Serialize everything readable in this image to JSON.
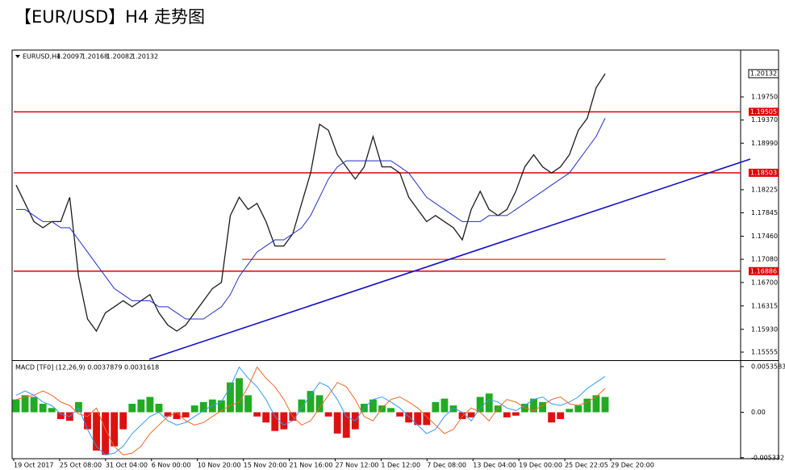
{
  "title": "【EUR/USD】H4 走势图",
  "chart_data": [
    {
      "type": "line",
      "symbol": "EURUSD,H4",
      "ohlc": [
        1.20097,
        1.20168,
        1.20082,
        1.20132
      ],
      "series": [
        {
          "color": "#1a1a1a",
          "values": [
            1.183,
            1.18,
            1.177,
            1.176,
            1.177,
            1.177,
            1.181,
            1.168,
            1.161,
            1.159,
            1.162,
            1.163,
            1.164,
            1.163,
            1.164,
            1.165,
            1.162,
            1.16,
            1.159,
            1.16,
            1.162,
            1.164,
            1.166,
            1.167,
            1.178,
            1.181,
            1.179,
            1.18,
            1.177,
            1.173,
            1.173,
            1.175,
            1.18,
            1.185,
            1.193,
            1.192,
            1.188,
            1.186,
            1.184,
            1.186,
            1.191,
            1.186,
            1.186,
            1.185,
            1.181,
            1.179,
            1.177,
            1.178,
            1.177,
            1.176,
            1.174,
            1.179,
            1.182,
            1.179,
            1.178,
            1.179,
            1.182,
            1.186,
            1.188,
            1.186,
            1.185,
            1.186,
            1.188,
            1.192,
            1.194,
            1.199,
            1.2013
          ]
        },
        {
          "color": "#2030c0",
          "values": [
            1.179,
            1.179,
            1.178,
            1.177,
            1.177,
            1.176,
            1.176,
            1.174,
            1.172,
            1.17,
            1.168,
            1.166,
            1.165,
            1.164,
            1.164,
            1.164,
            1.163,
            1.163,
            1.162,
            1.161,
            1.161,
            1.161,
            1.162,
            1.163,
            1.165,
            1.168,
            1.17,
            1.172,
            1.173,
            1.174,
            1.174,
            1.175,
            1.176,
            1.178,
            1.181,
            1.184,
            1.186,
            1.187,
            1.187,
            1.187,
            1.187,
            1.187,
            1.187,
            1.186,
            1.185,
            1.183,
            1.181,
            1.18,
            1.179,
            1.178,
            1.177,
            1.177,
            1.177,
            1.178,
            1.178,
            1.178,
            1.179,
            1.18,
            1.181,
            1.182,
            1.183,
            1.184,
            1.185,
            1.187,
            1.189,
            1.191,
            1.194
          ]
        }
      ],
      "ylim": [
        1.15436,
        1.2052
      ],
      "yticks": [
        {
          "value": 1.1975,
          "label": "1.19750"
        },
        {
          "value": 1.1937,
          "label": "1.19370"
        },
        {
          "value": 1.1899,
          "label": "1.18990"
        },
        1.18225,
        1.17845,
        {
          "value": 1.1746,
          "label": "1.17460"
        },
        {
          "value": 1.1708,
          "label": "1.17080"
        },
        {
          "value": 1.167,
          "label": "1.16700"
        },
        1.16315,
        {
          "value": 1.1593,
          "label": "1.15930"
        },
        1.15555
      ],
      "levels": [
        1.19505,
        1.18503,
        1.16886
      ],
      "level_color": "#e00000",
      "short_level": 1.1708,
      "trendline": [
        1.15436,
        1.18728
      ],
      "trend_color": "#1010c8",
      "x_labels": [
        "19 Oct 2017",
        "25 Oct 08:00",
        "31 Oct 04:00",
        "6 Nov 00:00",
        "10 Nov 20:00",
        "15 Nov 20:00",
        "21 Nov 16:00",
        "27 Nov 12:00",
        "1 Dec 12:00",
        "7 Dec 08:00",
        "13 Dec 04:00",
        "19 Dec 00:00",
        "25 Dec 22:05",
        "29 Dec 20:00"
      ]
    },
    {
      "type": "macd",
      "label": "MACD [TF0] (12,26,9) 0.0037879 0.0031618",
      "values": [
        0.0015,
        0.002,
        0.0018,
        0.001,
        0.0005,
        -0.0008,
        -0.001,
        0.0012,
        -0.002,
        -0.0045,
        -0.005,
        -0.004,
        -0.002,
        0.001,
        0.0015,
        0.0018,
        0.001,
        -0.0005,
        -0.0008,
        -0.0006,
        0.0008,
        0.0012,
        0.0015,
        0.0014,
        0.0035,
        0.004,
        0.002,
        -0.0005,
        -0.0012,
        -0.0022,
        -0.002,
        -0.001,
        0.0015,
        0.0025,
        0.002,
        -0.0005,
        -0.0025,
        -0.003,
        -0.002,
        0.001,
        0.0015,
        0.0008,
        0.0005,
        -0.0005,
        -0.0012,
        -0.0015,
        -0.0015,
        0.0012,
        0.0016,
        0.0008,
        -0.0008,
        -0.0006,
        0.0018,
        0.0022,
        0.0008,
        -0.0006,
        -0.0004,
        0.001,
        0.0016,
        0.0012,
        -0.0012,
        -0.0008,
        0.0004,
        0.0008,
        0.0016,
        0.002,
        0.0018
      ],
      "pos_color": "#22aa22",
      "neg_color": "#dd1111",
      "series": [
        {
          "color": "#3399ee",
          "values": [
            0.002,
            0.0025,
            0.002,
            0.0012,
            0.0008,
            -0.0002,
            -0.0005,
            0.0005,
            -0.002,
            -0.004,
            -0.005,
            -0.0048,
            -0.004,
            -0.0025,
            -0.0015,
            -0.0005,
            0,
            -0.001,
            -0.0015,
            -0.0012,
            -0.0005,
            0.0002,
            0.0008,
            0.0012,
            0.003,
            0.0053,
            0.004,
            0.003,
            0.0015,
            -0.0005,
            -0.0015,
            -0.001,
            0.0005,
            0.002,
            0.0035,
            0.003,
            0.0015,
            -0.0005,
            -0.001,
            0.0005,
            0.0015,
            0.0018,
            0.0012,
            0.0005,
            -0.0005,
            -0.0015,
            -0.0025,
            -0.002,
            -0.0005,
            0.0005,
            0,
            -0.001,
            0.0005,
            0.0015,
            0.0012,
            0.0005,
            0.0002,
            0.0008,
            0.0015,
            0.0018,
            0.001,
            0.0008,
            0.0012,
            0.0018,
            0.0028,
            0.0035,
            0.0042
          ]
        },
        {
          "color": "#ee6622",
          "values": [
            0.0015,
            0.0018,
            0.002,
            0.0025,
            0.002,
            0.0012,
            0.0008,
            -0.0002,
            -0.0005,
            0.0005,
            -0.002,
            -0.004,
            -0.005,
            -0.0048,
            -0.004,
            -0.0025,
            -0.0015,
            -0.0005,
            0,
            -0.001,
            -0.0015,
            -0.0012,
            -0.0005,
            0.0002,
            0.0008,
            0.0012,
            0.003,
            0.0053,
            0.004,
            0.003,
            0.0015,
            -0.0005,
            -0.0015,
            -0.001,
            0.0005,
            0.002,
            0.0035,
            0.003,
            0.0015,
            -0.0005,
            -0.001,
            0.0005,
            0.0015,
            0.0018,
            0.0012,
            0.0005,
            -0.0005,
            -0.0015,
            -0.0025,
            -0.002,
            -0.0005,
            0.0005,
            0,
            -0.001,
            0.0005,
            0.0015,
            0.0012,
            0.0005,
            0.0002,
            0.0008,
            0.0015,
            0.0018,
            0.001,
            0.0008,
            0.0012,
            0.0018,
            0.0028
          ]
        }
      ],
      "ylim": [
        -0.00545,
        0.00583
      ],
      "yticks": [
        0.0053583,
        {
          "value": 0,
          "label": "0.00"
        },
        -0.005332
      ]
    }
  ]
}
